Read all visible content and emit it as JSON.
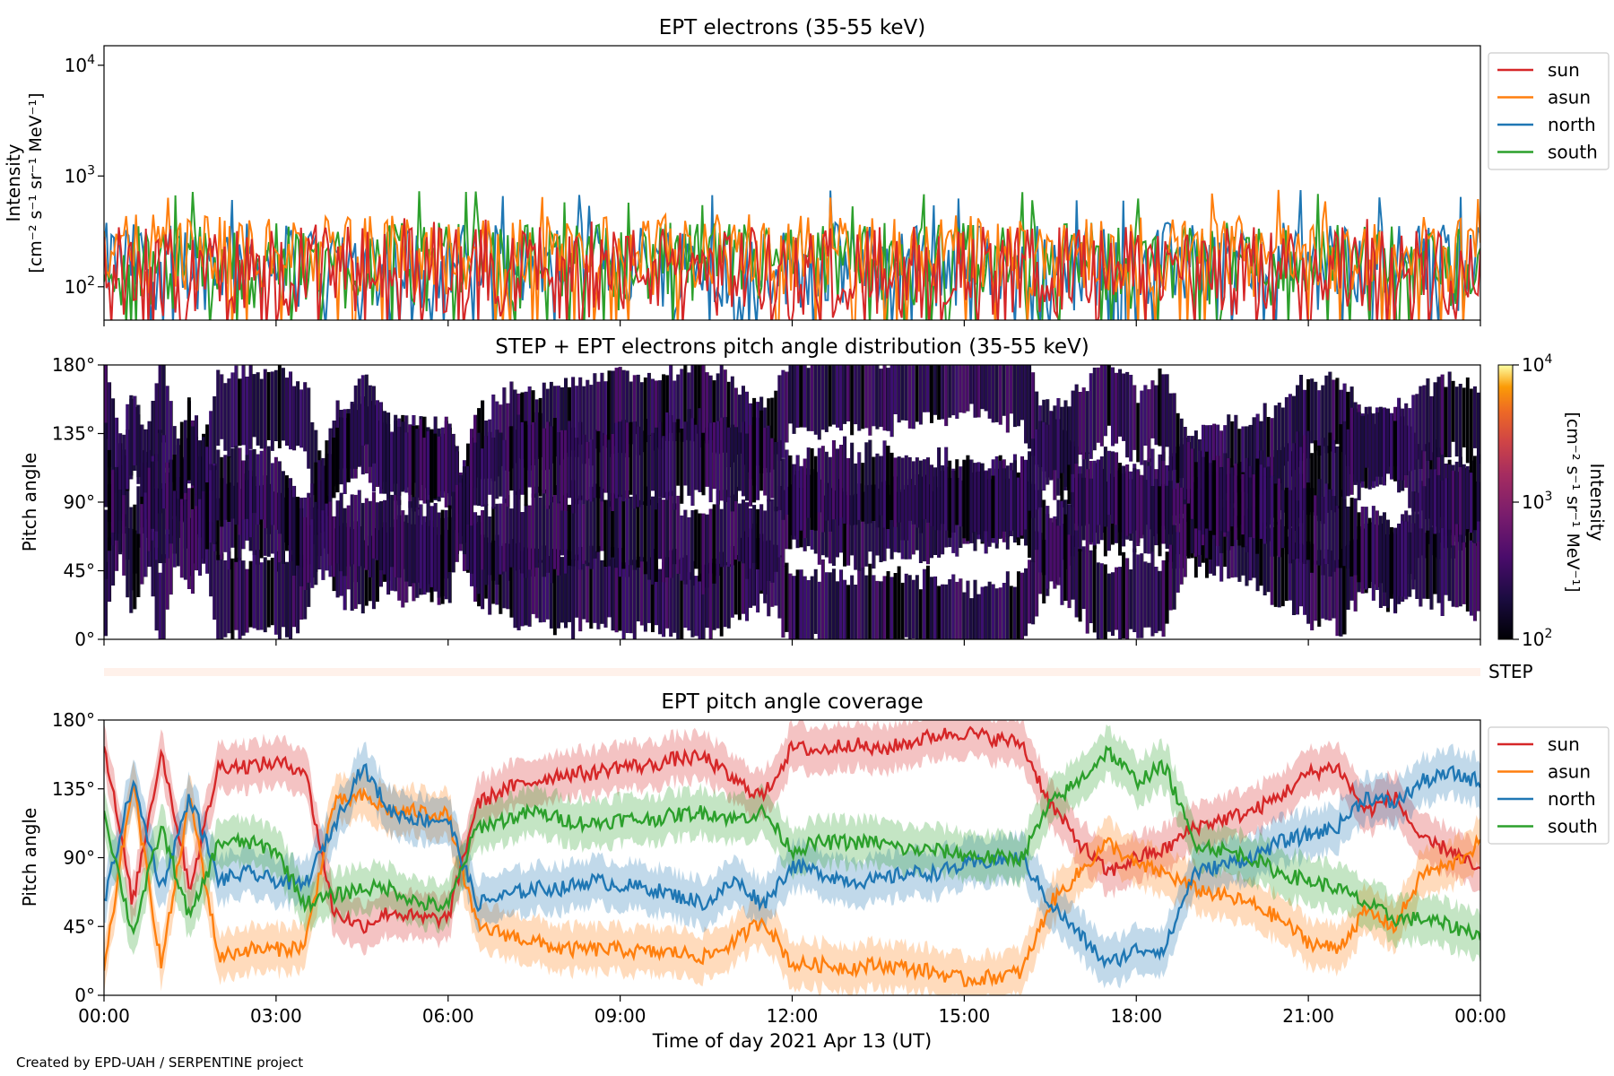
{
  "footer": "Created by EPD-UAH / SERPENTINE project",
  "x_axis": {
    "label": "Time of day 2021 Apr 13 (UT)",
    "ticks": [
      "00:00",
      "03:00",
      "06:00",
      "09:00",
      "12:00",
      "15:00",
      "18:00",
      "21:00",
      "00:00"
    ],
    "range_hours": [
      0,
      24
    ]
  },
  "colors": {
    "sun": "#d62728",
    "asun": "#ff7f0e",
    "north": "#1f77b4",
    "south": "#2ca02c",
    "step_bar": "#fff1ea"
  },
  "chart_data": [
    {
      "type": "line",
      "title": "EPT electrons (35-55 keV)",
      "ylabel": "Intensity",
      "ylabel_units": "[cm⁻² s⁻¹ sr⁻¹ MeV⁻¹]",
      "yscale": "log",
      "ylim": [
        50,
        15000
      ],
      "y_ticks": [
        {
          "value": 100,
          "base": "10",
          "exp": "2"
        },
        {
          "value": 1000,
          "base": "10",
          "exp": "3"
        },
        {
          "value": 10000,
          "base": "10",
          "exp": "4"
        }
      ],
      "legend": "top-right (outside)",
      "series": [
        {
          "name": "sun",
          "color": "#d62728",
          "typical_range": [
            50,
            350
          ],
          "peak": 450
        },
        {
          "name": "asun",
          "color": "#ff7f0e",
          "typical_range": [
            80,
            450
          ],
          "peak": 760
        },
        {
          "name": "north",
          "color": "#1f77b4",
          "typical_range": [
            60,
            380
          ],
          "peak": 750
        },
        {
          "name": "south",
          "color": "#2ca02c",
          "typical_range": [
            60,
            380
          ],
          "peak": 740
        }
      ]
    },
    {
      "type": "heatmap",
      "title": "STEP + EPT electrons pitch angle distribution (35-55 keV)",
      "ylabel": "Pitch angle",
      "ylim": [
        0,
        180
      ],
      "y_ticks": [
        "0°",
        "45°",
        "90°",
        "135°",
        "180°"
      ],
      "colorbar": {
        "label": "Intensity",
        "units": "[cm⁻² s⁻¹ sr⁻¹ MeV⁻¹]",
        "scale": "log",
        "range": [
          100,
          10000
        ],
        "ticks": [
          {
            "value": 100,
            "base": "10",
            "exp": "2"
          },
          {
            "value": 1000,
            "base": "10",
            "exp": "3"
          },
          {
            "value": 10000,
            "base": "10",
            "exp": "4"
          }
        ]
      }
    },
    {
      "type": "bar",
      "label": "STEP"
    },
    {
      "type": "line",
      "title": "EPT pitch angle coverage",
      "ylabel": "Pitch angle",
      "ylim": [
        0,
        180
      ],
      "y_ticks": [
        "0°",
        "45°",
        "90°",
        "135°",
        "180°"
      ],
      "legend": "top-right (outside)",
      "band_halfwidth_deg": 15,
      "x": [
        0,
        0.5,
        1,
        1.5,
        2,
        2.5,
        3,
        3.5,
        4,
        4.5,
        5,
        5.5,
        6,
        6.5,
        7,
        7.5,
        8,
        8.5,
        9,
        9.5,
        10,
        10.5,
        11,
        11.5,
        12,
        12.5,
        13,
        13.5,
        14,
        14.5,
        15,
        15.5,
        16,
        16.5,
        17,
        17.5,
        18,
        18.5,
        19,
        19.5,
        20,
        20.5,
        21,
        21.5,
        22,
        22.5,
        23,
        23.5,
        24
      ],
      "series": [
        {
          "name": "sun",
          "color": "#d62728",
          "values": [
            165,
            60,
            160,
            70,
            150,
            150,
            152,
            148,
            55,
            45,
            55,
            50,
            50,
            125,
            135,
            140,
            145,
            145,
            150,
            150,
            155,
            155,
            140,
            130,
            162,
            160,
            165,
            160,
            165,
            170,
            172,
            168,
            165,
            125,
            100,
            80,
            90,
            95,
            110,
            115,
            120,
            130,
            145,
            150,
            120,
            130,
            100,
            95,
            80
          ]
        },
        {
          "name": "asun",
          "color": "#ff7f0e",
          "values": [
            15,
            140,
            20,
            130,
            25,
            30,
            30,
            32,
            125,
            130,
            120,
            120,
            118,
            45,
            40,
            35,
            30,
            30,
            30,
            28,
            28,
            25,
            35,
            50,
            20,
            20,
            18,
            20,
            18,
            15,
            10,
            12,
            15,
            60,
            80,
            100,
            85,
            80,
            70,
            65,
            60,
            50,
            35,
            30,
            55,
            45,
            80,
            85,
            100
          ]
        },
        {
          "name": "north",
          "color": "#1f77b4",
          "values": [
            60,
            140,
            70,
            130,
            75,
            80,
            75,
            72,
            110,
            150,
            120,
            115,
            115,
            60,
            65,
            70,
            70,
            75,
            72,
            70,
            65,
            60,
            75,
            60,
            85,
            80,
            75,
            75,
            80,
            80,
            85,
            88,
            90,
            60,
            40,
            20,
            30,
            30,
            80,
            85,
            90,
            100,
            105,
            110,
            130,
            125,
            140,
            145,
            140
          ]
        },
        {
          "name": "south",
          "color": "#2ca02c",
          "values": [
            120,
            40,
            110,
            50,
            100,
            100,
            95,
            60,
            65,
            70,
            70,
            60,
            58,
            110,
            115,
            120,
            115,
            112,
            115,
            115,
            118,
            120,
            115,
            120,
            95,
            100,
            100,
            100,
            95,
            95,
            92,
            90,
            90,
            125,
            140,
            160,
            140,
            150,
            100,
            95,
            90,
            80,
            75,
            70,
            60,
            50,
            50,
            45,
            40
          ]
        }
      ]
    }
  ]
}
